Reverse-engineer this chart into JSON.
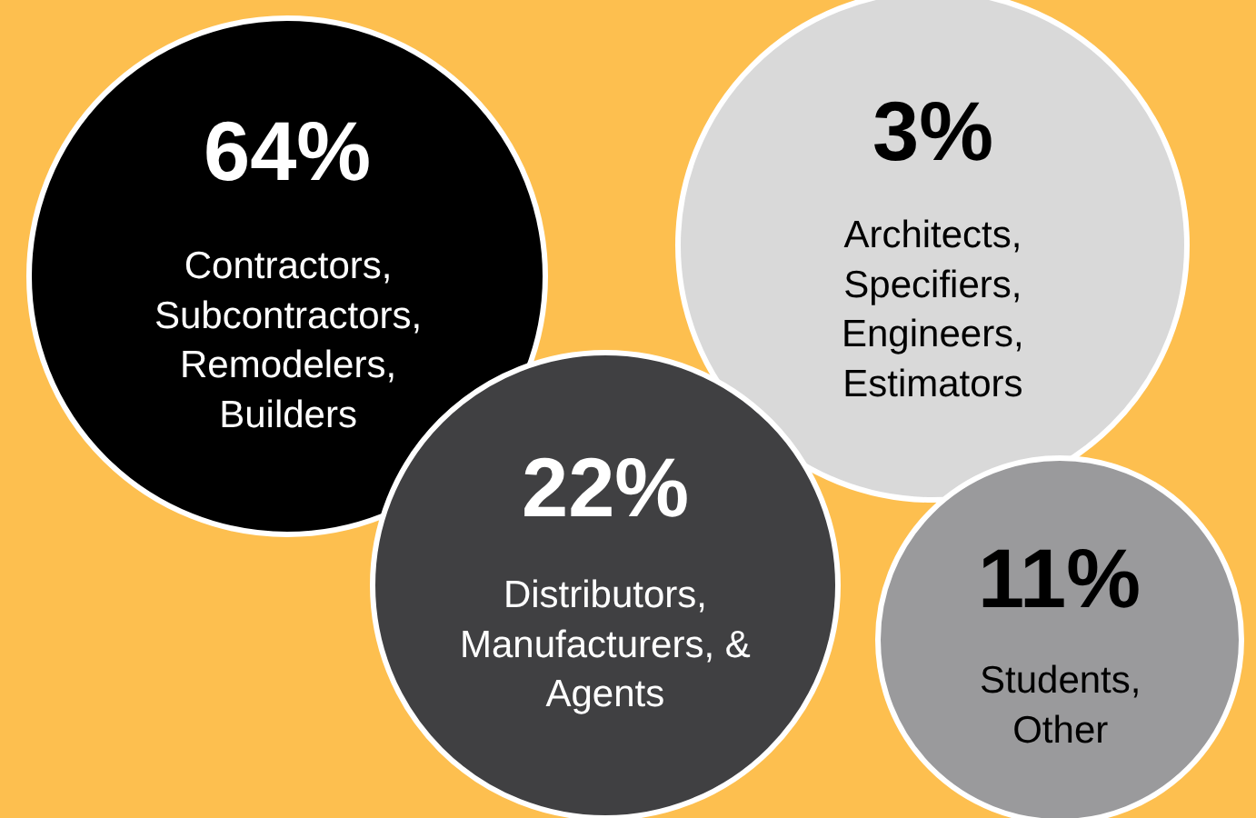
{
  "chart_data": {
    "type": "other",
    "categories": [
      "Contractors,\nSubcontractors,\nRemodelers,\nBuilders",
      "Architects,\nSpecifiers,\nEngineers,\nEstimators",
      "Distributors,\nManufacturers, &\nAgents",
      "Students,\nOther"
    ],
    "values": [
      64,
      3,
      22,
      11
    ],
    "value_labels": [
      "64%",
      "3%",
      "22%",
      "11%"
    ],
    "colors": [
      "#000000",
      "#d9d9d9",
      "#404042",
      "#9a9a9c"
    ]
  }
}
